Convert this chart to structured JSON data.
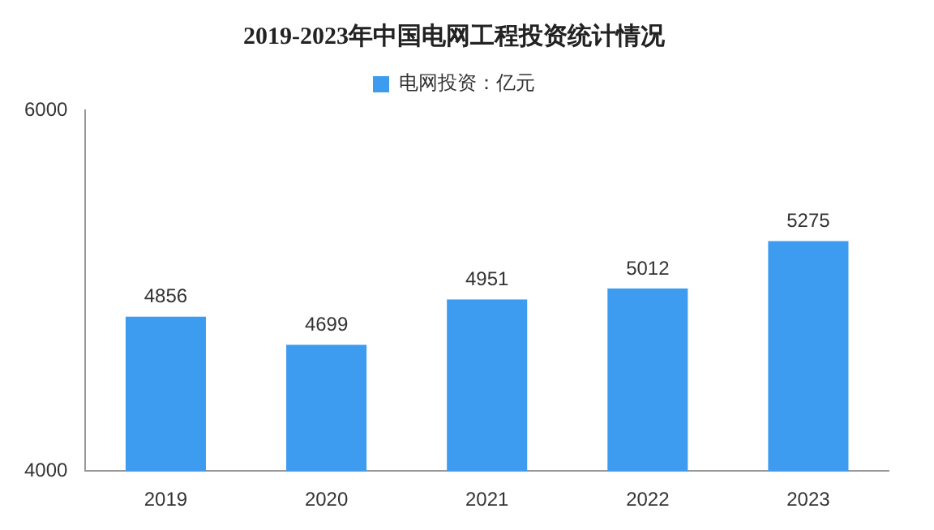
{
  "chart_data": {
    "type": "bar",
    "title": "2019-2023年中国电网工程投资统计情况",
    "categories": [
      "2019",
      "2020",
      "2021",
      "2022",
      "2023"
    ],
    "series": [
      {
        "name": "电网投资：亿元",
        "color": "#3d9cf0",
        "values": [
          4856,
          4699,
          4951,
          5012,
          5275
        ]
      }
    ],
    "ylim": [
      4000,
      6000
    ],
    "yticks": [
      4000,
      6000
    ],
    "grid": false,
    "legend": "top",
    "data_labels": true
  }
}
